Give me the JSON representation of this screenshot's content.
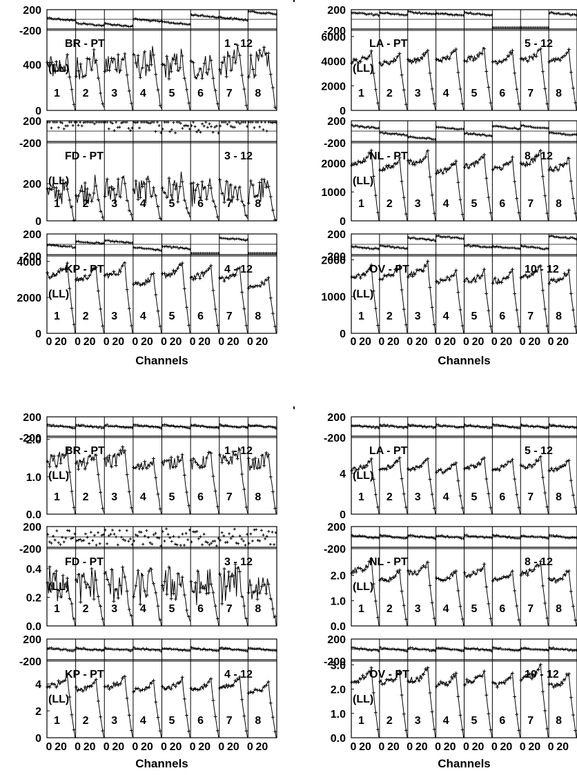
{
  "figure": {
    "axis_title": "Channels",
    "x_tick_labels": [
      "0",
      "20"
    ],
    "baseline_label": "(LL)",
    "baseline_numbers": [
      "1",
      "2",
      "3",
      "4",
      "5",
      "6",
      "7",
      "8"
    ],
    "stray_marks": [
      "'",
      "'"
    ]
  },
  "chart_data": [
    {
      "type": "line",
      "title": "BR - PT",
      "spw": "1 - 12",
      "phase_ticks": [
        "200",
        "-200"
      ],
      "amp_ticks": [
        "400",
        "0"
      ],
      "amp_range": [
        0,
        700
      ],
      "phase_series": [
        0,
        -95,
        -110,
        -20,
        -75,
        60,
        10,
        120
      ],
      "amp_series_mean": [
        400,
        400,
        420,
        410,
        400,
        380,
        420,
        420
      ],
      "amp_series_noise": "high"
    },
    {
      "type": "line",
      "title": "FD - PT",
      "spw": "3 - 12",
      "phase_ticks": [
        "200",
        "-200"
      ],
      "amp_ticks": [
        "200",
        "0"
      ],
      "amp_range": [
        0,
        420
      ],
      "phase_series": [
        180,
        180,
        120,
        120,
        100,
        80,
        200,
        140
      ],
      "amp_series_mean": [
        150,
        160,
        170,
        165,
        170,
        150,
        160,
        160
      ],
      "amp_series_noise": "very-high"
    },
    {
      "type": "line",
      "title": "KP - PT",
      "spw": "4 - 12",
      "phase_ticks": [
        "200",
        "-200"
      ],
      "amp_ticks": [
        "4000",
        "2000",
        "0"
      ],
      "amp_range": [
        0,
        4300
      ],
      "phase_series": [
        -30,
        30,
        40,
        -80,
        -60,
        -250,
        90,
        -220
      ],
      "amp_series_mean": [
        3400,
        3200,
        3400,
        2900,
        3400,
        3300,
        3200,
        2700
      ],
      "amp_series_noise": "low"
    },
    {
      "type": "line",
      "title": "LA - PT",
      "spw": "5 - 12",
      "phase_ticks": [
        "200",
        "-200"
      ],
      "amp_ticks": [
        "6000",
        "4000",
        "2000",
        "0"
      ],
      "amp_range": [
        0,
        6500
      ],
      "phase_series": [
        100,
        100,
        110,
        90,
        100,
        -200,
        -180,
        100
      ],
      "amp_series_mean": [
        4200,
        4000,
        4200,
        4300,
        4400,
        4200,
        4300,
        4300
      ],
      "amp_series_noise": "low"
    },
    {
      "type": "line",
      "title": "NL - PT",
      "spw": "8 - 12",
      "phase_ticks": [
        "200",
        "-200"
      ],
      "amp_ticks": [
        "2000",
        "1000",
        "0"
      ],
      "amp_range": [
        0,
        2700
      ],
      "phase_series": [
        70,
        -50,
        -120,
        50,
        -60,
        60,
        70,
        -50
      ],
      "amp_series_mean": [
        2100,
        1900,
        2100,
        1800,
        2000,
        1900,
        2100,
        1900
      ],
      "amp_series_noise": "low"
    },
    {
      "type": "line",
      "title": "OV - PT",
      "spw": "10 - 12",
      "phase_ticks": [
        "200",
        "200",
        "-200"
      ],
      "amp_ticks": [
        "2000",
        "1000",
        "0"
      ],
      "amp_range": [
        0,
        2100
      ],
      "phase_series": [
        -60,
        -50,
        90,
        120,
        -40,
        -60,
        -60,
        120
      ],
      "amp_series_mean": [
        1600,
        1600,
        1700,
        1500,
        1500,
        1500,
        1600,
        1500
      ],
      "amp_series_noise": "low"
    },
    {
      "type": "line",
      "title": "BR - PT",
      "spw": "1 - 12",
      "phase_ticks": [
        "200",
        "-200"
      ],
      "amp_ticks": [
        "2.0",
        "1.0",
        "0.0"
      ],
      "amp_range": [
        0,
        2.05
      ],
      "phase_series": [
        0,
        0,
        0,
        0,
        0,
        0,
        0,
        0
      ],
      "amp_series_mean": [
        1.5,
        1.4,
        1.5,
        1.3,
        1.4,
        1.4,
        1.5,
        1.4
      ],
      "amp_series_noise": "medium"
    },
    {
      "type": "line",
      "title": "FD - PT",
      "spw": "3 - 12",
      "phase_ticks": [
        "200",
        "-200"
      ],
      "amp_ticks": [
        "0.4",
        "0.2",
        "0.0"
      ],
      "amp_range": [
        0,
        0.54
      ],
      "phase_series": [
        0,
        0,
        0,
        0,
        0,
        0,
        0,
        0
      ],
      "amp_series_mean": [
        0.3,
        0.28,
        0.3,
        0.28,
        0.3,
        0.28,
        0.3,
        0.28
      ],
      "amp_series_noise": "very-high"
    },
    {
      "type": "line",
      "title": "KP - PT",
      "spw": "4 - 12",
      "phase_ticks": [
        "200",
        "-200"
      ],
      "amp_ticks": [
        "4",
        "2",
        "0"
      ],
      "amp_range": [
        0,
        5.7
      ],
      "phase_series": [
        0,
        0,
        0,
        0,
        0,
        0,
        0,
        0
      ],
      "amp_series_mean": [
        4.1,
        3.8,
        4.0,
        3.7,
        3.9,
        3.8,
        3.9,
        3.6
      ],
      "amp_series_noise": "low"
    },
    {
      "type": "line",
      "title": "LA - PT",
      "spw": "5 - 12",
      "phase_ticks": [
        "200",
        "-200"
      ],
      "amp_ticks": [
        "4",
        "0"
      ],
      "amp_range": [
        0,
        7.5
      ],
      "phase_series": [
        0,
        0,
        0,
        0,
        0,
        0,
        0,
        0
      ],
      "amp_series_mean": [
        4.7,
        4.8,
        4.7,
        4.4,
        4.8,
        4.7,
        4.9,
        4.6
      ],
      "amp_series_noise": "low"
    },
    {
      "type": "line",
      "title": "NL - PT",
      "spw": "8 - 12",
      "phase_ticks": [
        "200",
        "-200"
      ],
      "amp_ticks": [
        "2.0",
        "1.0",
        "0.0"
      ],
      "amp_range": [
        0,
        3.05
      ],
      "phase_series": [
        0,
        0,
        0,
        0,
        0,
        0,
        0,
        0
      ],
      "amp_series_mean": [
        2.3,
        1.9,
        2.2,
        1.9,
        2.1,
        1.9,
        2.2,
        1.9
      ],
      "amp_series_noise": "low"
    },
    {
      "type": "line",
      "title": "OV - PT",
      "spw": "10 - 12",
      "phase_ticks": [
        "200",
        "-200"
      ],
      "amp_ticks": [
        "3.0",
        "2.0",
        "1.0",
        "0.0"
      ],
      "amp_range": [
        0,
        3.15
      ],
      "phase_series": [
        0,
        0,
        0,
        0,
        0,
        0,
        0,
        0
      ],
      "amp_series_mean": [
        2.5,
        2.4,
        2.5,
        2.3,
        2.4,
        2.3,
        2.6,
        2.3
      ],
      "amp_series_noise": "low"
    }
  ]
}
